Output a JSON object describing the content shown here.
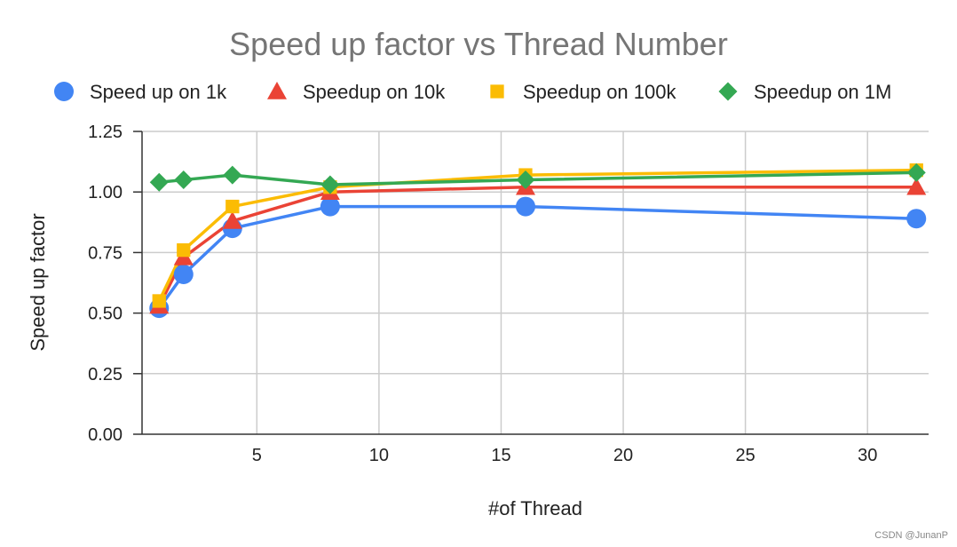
{
  "chart_data": {
    "type": "line",
    "title": "Speed up factor vs Thread Number",
    "xlabel": "#of Thread",
    "ylabel": "Speed up factor",
    "xlim": [
      0.3,
      32.5
    ],
    "ylim": [
      0,
      1.25
    ],
    "x_ticks": [
      5,
      10,
      15,
      20,
      25,
      30
    ],
    "y_ticks": [
      0,
      0.25,
      0.5,
      0.75,
      1.0,
      1.25
    ],
    "y_tick_labels": [
      "0.00",
      "0.25",
      "0.50",
      "0.75",
      "1.00",
      "1.25"
    ],
    "grid": true,
    "legend_position": "top",
    "series": [
      {
        "name": "Speed up on 1k",
        "marker": "circle",
        "color": "#4285F4",
        "x": [
          1,
          2,
          4,
          8,
          16,
          32
        ],
        "values": [
          0.52,
          0.66,
          0.85,
          0.94,
          0.94,
          0.89
        ]
      },
      {
        "name": "Speedup on 10k",
        "marker": "triangle",
        "color": "#EA4335",
        "x": [
          1,
          2,
          4,
          8,
          16,
          32
        ],
        "values": [
          0.53,
          0.73,
          0.88,
          1.0,
          1.02,
          1.02
        ]
      },
      {
        "name": "Speedup on 100k",
        "marker": "square",
        "color": "#FBBC04",
        "x": [
          1,
          2,
          4,
          8,
          16,
          32
        ],
        "values": [
          0.55,
          0.76,
          0.94,
          1.02,
          1.07,
          1.09
        ]
      },
      {
        "name": "Speedup on 1M",
        "marker": "diamond",
        "color": "#34A853",
        "x": [
          1,
          2,
          4,
          8,
          16,
          32
        ],
        "values": [
          1.04,
          1.05,
          1.07,
          1.03,
          1.05,
          1.08
        ]
      }
    ]
  },
  "watermark": "CSDN @JunanP"
}
